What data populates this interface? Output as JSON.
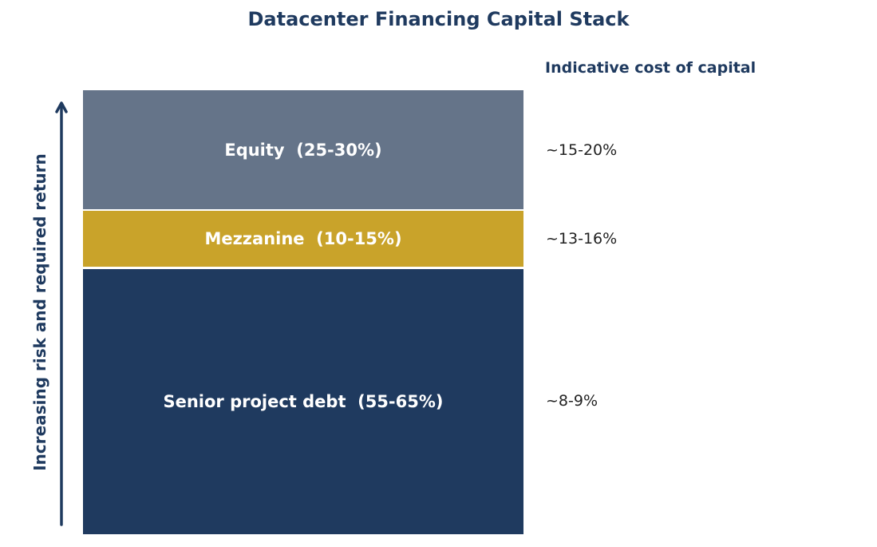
{
  "title": "Datacenter Financing Capital Stack",
  "cost_header": "Indicative cost of capital",
  "axis_label": "Increasing risk and required return",
  "colors": {
    "equity": "#657489",
    "mezzanine": "#c9a32a",
    "senior": "#1f3a5f",
    "text_dark": "#1f3a5f"
  },
  "layers": [
    {
      "label": "Equity  (25-30%)",
      "cost": "~15-20%",
      "share_range": [
        25,
        30
      ],
      "color": "#657489"
    },
    {
      "label": "Mezzanine  (10-15%)",
      "cost": "~13-16%",
      "share_range": [
        10,
        15
      ],
      "color": "#c9a32a"
    },
    {
      "label": "Senior project debt  (55-65%)",
      "cost": "~8-9%",
      "share_range": [
        55,
        65
      ],
      "color": "#1f3a5f"
    }
  ]
}
